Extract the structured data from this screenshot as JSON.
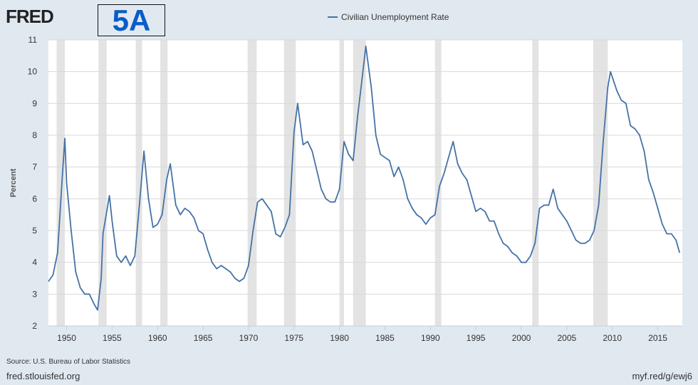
{
  "logo": "FRED",
  "figure_label": "5A",
  "footer": {
    "source": "Source: U.S. Bureau of Labor Statistics",
    "site": "fred.stlouisfed.org",
    "short_url": "myf.red/g/ewj6"
  },
  "colors": {
    "line": "#4572a7",
    "recession": "#e3e3e3",
    "background": "#e1e9f0"
  },
  "chart_data": {
    "type": "line",
    "title": "",
    "xlabel": "",
    "ylabel": "Percent",
    "xlim": [
      1948,
      2017.7
    ],
    "ylim": [
      2,
      11
    ],
    "grid": true,
    "legend": "top-center",
    "x_ticks": [
      1950,
      1955,
      1960,
      1965,
      1970,
      1975,
      1980,
      1985,
      1990,
      1995,
      2000,
      2005,
      2010,
      2015
    ],
    "y_ticks": [
      2,
      3,
      4,
      5,
      6,
      7,
      8,
      9,
      10,
      11
    ],
    "recessions": [
      [
        1948.9,
        1949.8
      ],
      [
        1953.5,
        1954.4
      ],
      [
        1957.6,
        1958.3
      ],
      [
        1960.3,
        1961.1
      ],
      [
        1969.9,
        1970.9
      ],
      [
        1973.9,
        1975.2
      ],
      [
        1980.0,
        1980.5
      ],
      [
        1981.5,
        1982.9
      ],
      [
        1990.5,
        1991.2
      ],
      [
        2001.2,
        2001.9
      ],
      [
        2007.9,
        2009.5
      ]
    ],
    "series": [
      {
        "name": "Civilian Unemployment Rate",
        "x": [
          1948.0,
          1948.5,
          1949.0,
          1949.5,
          1949.8,
          1950.0,
          1950.5,
          1951.0,
          1951.5,
          1952.0,
          1952.5,
          1953.0,
          1953.4,
          1953.8,
          1954.0,
          1954.7,
          1955.0,
          1955.5,
          1956.0,
          1956.5,
          1957.0,
          1957.5,
          1958.0,
          1958.5,
          1959.0,
          1959.5,
          1960.0,
          1960.5,
          1961.0,
          1961.4,
          1962.0,
          1962.5,
          1963.0,
          1963.5,
          1964.0,
          1964.5,
          1965.0,
          1965.5,
          1966.0,
          1966.5,
          1967.0,
          1967.5,
          1968.0,
          1968.5,
          1969.0,
          1969.5,
          1970.0,
          1970.5,
          1971.0,
          1971.5,
          1972.0,
          1972.5,
          1973.0,
          1973.5,
          1974.0,
          1974.5,
          1975.0,
          1975.4,
          1976.0,
          1976.5,
          1977.0,
          1977.5,
          1978.0,
          1978.5,
          1979.0,
          1979.5,
          1980.0,
          1980.5,
          1981.0,
          1981.5,
          1982.0,
          1982.5,
          1982.9,
          1983.5,
          1984.0,
          1984.5,
          1985.0,
          1985.5,
          1986.0,
          1986.5,
          1987.0,
          1987.5,
          1988.0,
          1988.5,
          1989.0,
          1989.5,
          1990.0,
          1990.5,
          1991.0,
          1991.5,
          1992.0,
          1992.5,
          1993.0,
          1993.5,
          1994.0,
          1994.5,
          1995.0,
          1995.5,
          1996.0,
          1996.5,
          1997.0,
          1997.5,
          1998.0,
          1998.5,
          1999.0,
          1999.5,
          2000.0,
          2000.5,
          2001.0,
          2001.5,
          2002.0,
          2002.5,
          2003.0,
          2003.5,
          2004.0,
          2004.5,
          2005.0,
          2005.5,
          2006.0,
          2006.5,
          2007.0,
          2007.5,
          2008.0,
          2008.5,
          2009.0,
          2009.5,
          2009.8,
          2010.5,
          2011.0,
          2011.5,
          2012.0,
          2012.5,
          2013.0,
          2013.5,
          2014.0,
          2014.5,
          2015.0,
          2015.5,
          2016.0,
          2016.5,
          2017.0,
          2017.4
        ],
        "values": [
          3.4,
          3.6,
          4.3,
          6.6,
          7.9,
          6.5,
          5.0,
          3.7,
          3.2,
          3.0,
          3.0,
          2.7,
          2.5,
          3.5,
          4.9,
          6.1,
          5.3,
          4.2,
          4.0,
          4.2,
          3.9,
          4.2,
          5.8,
          7.5,
          6.0,
          5.1,
          5.2,
          5.5,
          6.6,
          7.1,
          5.8,
          5.5,
          5.7,
          5.6,
          5.4,
          5.0,
          4.9,
          4.4,
          4.0,
          3.8,
          3.9,
          3.8,
          3.7,
          3.5,
          3.4,
          3.5,
          3.9,
          5.0,
          5.9,
          6.0,
          5.8,
          5.6,
          4.9,
          4.8,
          5.1,
          5.5,
          8.1,
          9.0,
          7.7,
          7.8,
          7.5,
          6.9,
          6.3,
          6.0,
          5.9,
          5.9,
          6.3,
          7.8,
          7.4,
          7.2,
          8.6,
          9.8,
          10.8,
          9.5,
          8.0,
          7.4,
          7.3,
          7.2,
          6.7,
          7.0,
          6.6,
          6.0,
          5.7,
          5.5,
          5.4,
          5.2,
          5.4,
          5.5,
          6.4,
          6.8,
          7.3,
          7.8,
          7.1,
          6.8,
          6.6,
          6.1,
          5.6,
          5.7,
          5.6,
          5.3,
          5.3,
          4.9,
          4.6,
          4.5,
          4.3,
          4.2,
          4.0,
          4.0,
          4.2,
          4.6,
          5.7,
          5.8,
          5.8,
          6.3,
          5.7,
          5.5,
          5.3,
          5.0,
          4.7,
          4.6,
          4.6,
          4.7,
          5.0,
          5.8,
          7.8,
          9.5,
          10.0,
          9.4,
          9.1,
          9.0,
          8.3,
          8.2,
          8.0,
          7.5,
          6.6,
          6.2,
          5.7,
          5.2,
          4.9,
          4.9,
          4.7,
          4.3
        ]
      }
    ]
  }
}
